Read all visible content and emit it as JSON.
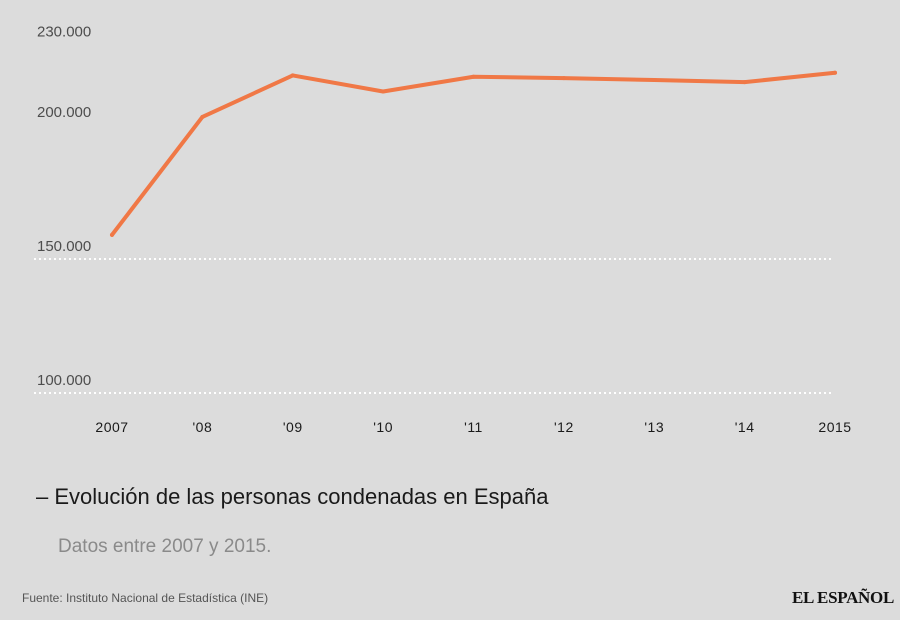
{
  "chart_data": {
    "type": "line",
    "categories": [
      "2007",
      "'08",
      "'09",
      "'10",
      "'11",
      "'12",
      "'13",
      "'14",
      "2015"
    ],
    "series": [
      {
        "values": [
          159000,
          203000,
          218500,
          212500,
          218000,
          217500,
          216800,
          216000,
          219500
        ]
      }
    ],
    "yticks": [
      "230.000",
      "200.000",
      "150.000",
      "100.000"
    ],
    "ytick_values": [
      230000,
      200000,
      150000,
      100000
    ],
    "grid": true,
    "line_color": "#f07846",
    "grid_color": "#ffffff"
  },
  "title": "– Evolución de las personas condenadas en España",
  "subtitle": "Datos entre 2007 y 2015.",
  "source": "Fuente: Instituto Nacional de Estadística (INE)",
  "logo": "EL ESPAÑOL"
}
